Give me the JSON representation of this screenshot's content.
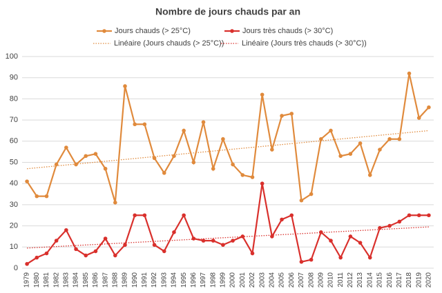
{
  "chart_data": {
    "type": "line",
    "title": "Nombre de jours chauds par an",
    "categories": [
      "1979",
      "1980",
      "1981",
      "1982",
      "1983",
      "1984",
      "1985",
      "1986",
      "1987",
      "1988",
      "1989",
      "1990",
      "1991",
      "1992",
      "1993",
      "1994",
      "1995",
      "1996",
      "1997",
      "1998",
      "1999",
      "2000",
      "2001",
      "2002",
      "2003",
      "2004",
      "2005",
      "2006",
      "2007",
      "2008",
      "2009",
      "2010",
      "2011",
      "2012",
      "2013",
      "2014",
      "2015",
      "2016",
      "2017",
      "2018",
      "2019",
      "2020"
    ],
    "series": [
      {
        "name": "Jours chauds (> 25°C)",
        "color": "#e08a3c",
        "values": [
          41,
          34,
          34,
          49,
          57,
          49,
          53,
          54,
          47,
          31,
          86,
          68,
          68,
          52,
          45,
          53,
          65,
          50,
          69,
          47,
          61,
          49,
          44,
          43,
          82,
          56,
          72,
          73,
          32,
          35,
          61,
          65,
          53,
          54,
          59,
          44,
          56,
          61,
          61,
          92,
          71,
          76
        ]
      },
      {
        "name": "Jours très chauds (> 30°C)",
        "color": "#d9302c",
        "values": [
          2,
          5,
          7,
          13,
          18,
          9,
          6,
          8,
          14,
          6,
          11,
          25,
          25,
          11,
          8,
          17,
          25,
          14,
          13,
          13,
          11,
          13,
          15,
          7,
          40,
          15,
          23,
          25,
          3,
          4,
          17,
          13,
          5,
          15,
          12,
          5,
          19,
          20,
          22,
          25,
          25,
          25
        ]
      }
    ],
    "trendlines": [
      {
        "name": "Linéaire (Jours chauds (> 25°C))",
        "color": "#e08a3c",
        "values": [
          47,
          65
        ]
      },
      {
        "name": "Linéaire (Jours très chauds (> 30°C))",
        "color": "#d9302c",
        "values": [
          9.5,
          19.5
        ]
      }
    ],
    "ylim": [
      0,
      100
    ],
    "yticks": [
      0,
      10,
      20,
      30,
      40,
      50,
      60,
      70,
      80,
      90,
      100
    ],
    "grid": true
  }
}
